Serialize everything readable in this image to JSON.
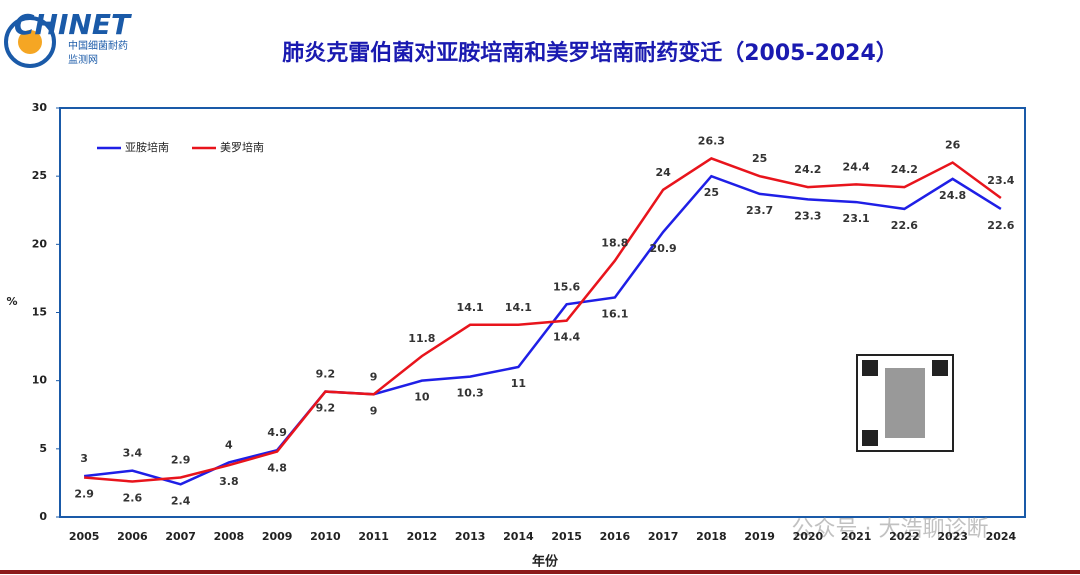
{
  "logo": {
    "name": "CHINET",
    "subtitle": "中国细菌耐药",
    "subtitle2": "监测网"
  },
  "watermark": "公众号 · 大浩聊诊断",
  "chart_data": {
    "type": "line",
    "title": "肺炎克雷伯菌对亚胺培南和美罗培南耐药变迁（2005-2024）",
    "x_label": "年份",
    "y_label": "%",
    "categories": [
      "2005",
      "2006",
      "2007",
      "2008",
      "2009",
      "2010",
      "2011",
      "2012",
      "2013",
      "2014",
      "2015",
      "2016",
      "2017",
      "2018",
      "2019",
      "2020",
      "2021",
      "2022",
      "2023",
      "2024"
    ],
    "series": [
      {
        "name": "亚胺培南",
        "color": "#1f1fe6",
        "values": [
          3,
          3.4,
          2.4,
          4,
          4.9,
          9.2,
          9,
          10,
          10.3,
          11,
          15.6,
          16.1,
          20.9,
          25,
          23.7,
          23.3,
          23.1,
          22.6,
          24.8,
          22.6
        ]
      },
      {
        "name": "美罗培南",
        "color": "#e8141c",
        "values": [
          2.9,
          2.6,
          2.9,
          3.8,
          4.8,
          9.2,
          9,
          11.8,
          14.1,
          14.1,
          14.4,
          18.8,
          24,
          26.3,
          25,
          24.2,
          24.4,
          24.2,
          26,
          23.4
        ]
      }
    ],
    "ylim": [
      0,
      30
    ],
    "yticks": [
      0,
      5,
      10,
      15,
      20,
      25,
      30
    ],
    "grid": false,
    "legend": "top-left"
  }
}
